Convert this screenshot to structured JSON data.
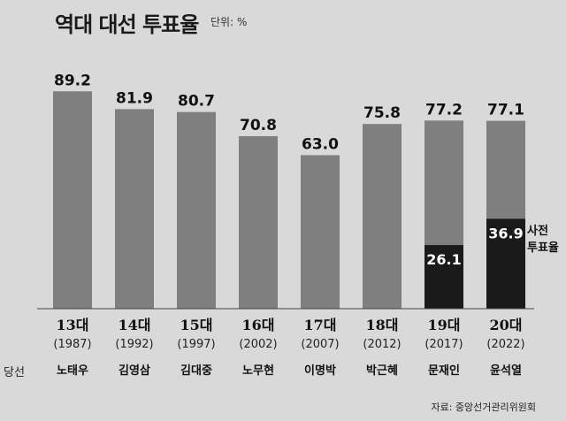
{
  "title": "역대 대선 투표율",
  "unit": "단위: %",
  "source": "자료: 중앙선거관리위원회",
  "winner_header": "당선",
  "early_vote_label": "사전 투표율",
  "colors": {
    "bar": "#7f7f7f",
    "early": "#1a1a1a",
    "background": "#d9d9d9",
    "value_text": "#111111"
  },
  "chart_data": {
    "type": "bar",
    "title": "역대 대선 투표율",
    "ylabel": "",
    "xlabel": "",
    "ylim": [
      0,
      100
    ],
    "categories": [
      "13대",
      "14대",
      "15대",
      "16대",
      "17대",
      "18대",
      "19대",
      "20대"
    ],
    "years": [
      "(1987)",
      "(1992)",
      "(1997)",
      "(2002)",
      "(2007)",
      "(2012)",
      "(2017)",
      "(2022)"
    ],
    "winners": [
      "노태우",
      "김영삼",
      "김대중",
      "노무현",
      "이명박",
      "박근혜",
      "문재인",
      "윤석열"
    ],
    "series": [
      {
        "values": [
          89.2,
          81.9,
          80.7,
          70.8,
          63.0,
          75.8,
          77.2,
          77.1
        ]
      },
      {
        "name": "사전 투표율",
        "values": [
          null,
          null,
          null,
          null,
          null,
          null,
          26.1,
          36.9
        ]
      }
    ],
    "value_labels": [
      "89.2",
      "81.9",
      "80.7",
      "70.8",
      "63.0",
      "75.8",
      "77.2",
      "77.1"
    ],
    "early_labels": [
      "",
      "",
      "",
      "",
      "",
      "",
      "26.1",
      "36.9"
    ]
  }
}
